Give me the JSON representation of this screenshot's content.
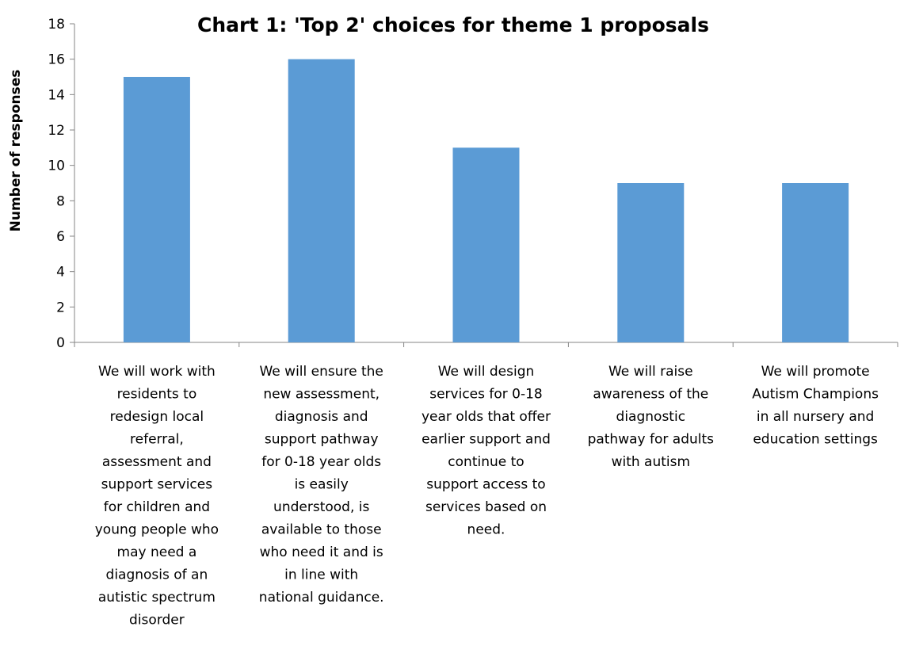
{
  "chart_data": {
    "type": "bar",
    "title": "Chart 1: 'Top 2' choices for theme 1 proposals",
    "xlabel": "",
    "ylabel": "Number of responses",
    "ylim": [
      0,
      18
    ],
    "yticks": [
      0,
      2,
      4,
      6,
      8,
      10,
      12,
      14,
      16,
      18
    ],
    "grid": false,
    "legend": "none",
    "bar_color": "#5B9BD5",
    "categories": [
      [
        "We will work with",
        "residents to",
        "redesign local",
        "referral,",
        "assessment and",
        "support services",
        "for children and",
        "young people who",
        "may need a",
        "diagnosis of an",
        "autistic spectrum",
        "disorder"
      ],
      [
        "We will ensure the",
        "new assessment,",
        "diagnosis and",
        "support pathway",
        "for 0-18 year olds",
        "is easily",
        "understood, is",
        "available to those",
        "who need it and is",
        "in line with",
        "national guidance."
      ],
      [
        "We will design",
        "services for 0-18",
        "year olds that offer",
        "earlier support and",
        "continue to",
        "support access to",
        "services based on",
        "need."
      ],
      [
        "We will raise",
        "awareness of the",
        "diagnostic",
        "pathway for adults",
        "with autism"
      ],
      [
        "We will promote",
        "Autism Champions",
        "in all nursery and",
        "education settings"
      ]
    ],
    "values": [
      15,
      16,
      11,
      9,
      9
    ]
  }
}
